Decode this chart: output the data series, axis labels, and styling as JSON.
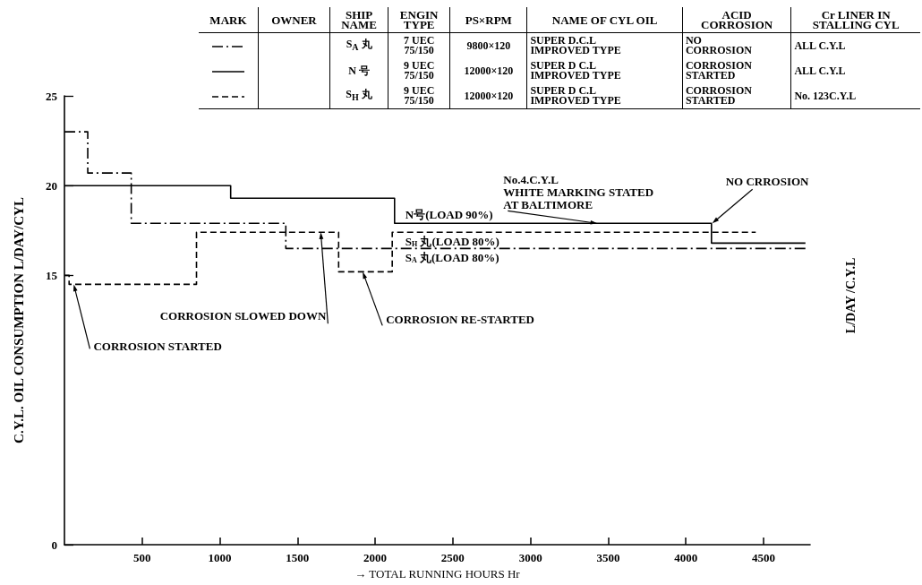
{
  "chart_data": [
    {
      "type": "step",
      "ylabel": "C.Y.L. OIL CONSUMPTION L/DAY/CYL",
      "xlabel": "→ TOTAL RUNNING HOURS Hr",
      "xlim": [
        0,
        4800
      ],
      "xticks": [
        500,
        1000,
        1500,
        2000,
        2500,
        3000,
        3500,
        4000,
        4500
      ],
      "ylim": [
        0,
        25
      ],
      "yticks": [
        0,
        15,
        20,
        25
      ],
      "grid": false,
      "legend": false,
      "series": [
        {
          "name": "N号(LOAD 90%)",
          "color": "#000000",
          "line_style": "solid",
          "x": [
            0,
            1070,
            2125,
            4165,
            4770
          ],
          "values": [
            20,
            19.3,
            17.9,
            16.8,
            16.8
          ]
        },
        {
          "name": "S$_{H}$ 丸(LOAD 80%)",
          "color": "#000000",
          "line_style": "dashed",
          "x": [
            0,
            30,
            850,
            1765,
            2110,
            4450
          ],
          "values": [
            15,
            14.5,
            17.4,
            15.2,
            17.4,
            17.4
          ]
        },
        {
          "name": "S$_{A}$ 丸(LOAD 80%)",
          "color": "#000000",
          "line_style": "dashdot",
          "x": [
            0,
            150,
            430,
            1425,
            4780
          ],
          "values": [
            23,
            20.7,
            17.9,
            16.5,
            16.5
          ]
        }
      ],
      "annotations": [
        {
          "text": "CORROSION STARTED",
          "x": 60,
          "y": 14.5
        },
        {
          "text": "CORROSION SLOWED DOWN",
          "x": 1650,
          "y": 17.4
        },
        {
          "text": "CORROSION RE-STARTED",
          "x": 1920,
          "y": 15.2
        },
        {
          "text": "No.4.C.Y.L\nWHITE MARKING STATED\nAT BALTIMORE",
          "x": 3430,
          "y": 17.9
        },
        {
          "text": "NO CRROSION",
          "x": 4170,
          "y": 17.9
        },
        "L/DAY /C.Y.L"
      ]
    },
    {
      "type": "other",
      "annotations": [
        "MARK",
        "OWNER",
        "SHIP\nNAME",
        "ENGIN\nTYPE",
        "PS×RPM",
        "NAME OF CYL OIL",
        "ACID\nCORROSION",
        "Cr LINER IN\nSTALLING CYL",
        "S$_{A}$ 丸",
        "7 UEC\n75/150",
        "9800×120",
        "SUPER D.C.L\nIMPROVED TYPE",
        "NO\nCORROSION",
        "ALL C.Y.L",
        "N 号",
        "9 UEC\n75/150",
        "12000×120",
        "SUPER D C.L\nIMPROVED TYPE",
        "CORROSION\nSTARTED",
        "ALL C.Y.L",
        "S$_{H}$ 丸",
        "9 UEC\n75/150",
        "12000×120",
        "SUPER D C.L\nIMPROVED TYPE",
        "CORROSION\nSTARTED",
        "No. 123C.Y.L"
      ]
    }
  ]
}
